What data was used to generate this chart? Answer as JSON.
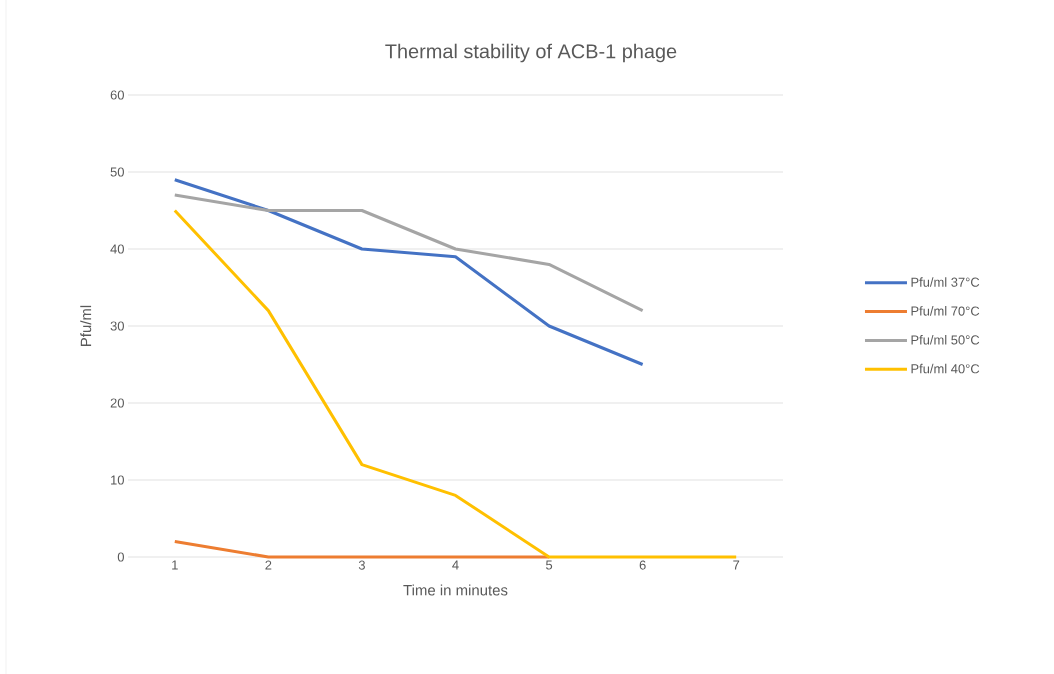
{
  "chart_data": {
    "type": "line",
    "title": "Thermal stability of ACB-1 phage",
    "xlabel": "Time in minutes",
    "ylabel": "Pfu/ml",
    "categories": [
      "1",
      "2",
      "3",
      "4",
      "5",
      "6",
      "7"
    ],
    "series": [
      {
        "name": "Pfu/ml 37°C",
        "color": "#4472c4",
        "values": [
          49,
          45,
          40,
          39,
          30,
          25,
          null
        ]
      },
      {
        "name": "Pfu/ml 70°C",
        "color": "#ed7d31",
        "values": [
          2,
          0,
          0,
          0,
          0,
          null,
          null
        ]
      },
      {
        "name": "Pfu/ml 50°C",
        "color": "#a5a5a5",
        "values": [
          47,
          45,
          45,
          40,
          38,
          32,
          null
        ]
      },
      {
        "name": "Pfu/ml 40°C",
        "color": "#ffc000",
        "values": [
          45,
          32,
          12,
          8,
          0,
          0,
          0
        ]
      }
    ],
    "ylim": [
      0,
      60
    ],
    "yticks": [
      0,
      10,
      20,
      30,
      40,
      50,
      60
    ],
    "grid": "y",
    "legend": "right",
    "marker": "none",
    "line_style": "solid"
  }
}
